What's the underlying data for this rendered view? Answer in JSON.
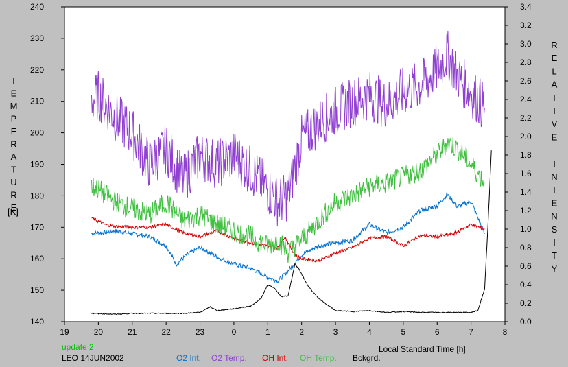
{
  "chart_data": {
    "type": "line",
    "ylabel_left": "TEMPERATURE",
    "ylabel_left_unit": "[K]",
    "ylabel_right": "RELATIVE INTENSITY",
    "xlabel": "Local Standard Time [h]",
    "status": "update 2",
    "site_date": "LEO 14JUN2002",
    "xlim": [
      19,
      8
    ],
    "xticks": [
      19,
      20,
      21,
      22,
      23,
      0,
      1,
      2,
      3,
      4,
      5,
      6,
      7,
      8
    ],
    "ylim_left": [
      140,
      240
    ],
    "yticks_left": [
      140,
      150,
      160,
      170,
      180,
      190,
      200,
      210,
      220,
      230,
      240
    ],
    "ylim_right": [
      0,
      3.4
    ],
    "yticks_right": [
      "0.0",
      "0.2",
      "0.4",
      "0.6",
      "0.8",
      "1.0",
      "1.2",
      "1.4",
      "1.6",
      "1.8",
      "2.0",
      "2.2",
      "2.4",
      "2.6",
      "2.8",
      "3.0",
      "3.2",
      "3.4"
    ],
    "grid": false,
    "legend_position": "bottom",
    "series": [
      {
        "name": "O2 Int.",
        "axis": "right",
        "color": "#0070d0",
        "x": [
          19.8,
          20.5,
          21.0,
          21.5,
          22.0,
          22.3,
          22.6,
          23.0,
          23.5,
          0.0,
          0.5,
          1.0,
          1.3,
          1.6,
          2.0,
          2.5,
          3.0,
          3.5,
          4.0,
          4.5,
          5.0,
          5.5,
          6.0,
          6.3,
          6.6,
          7.0,
          7.4
        ],
        "y": [
          0.95,
          0.98,
          0.95,
          0.92,
          0.82,
          0.62,
          0.72,
          0.8,
          0.7,
          0.62,
          0.58,
          0.48,
          0.44,
          0.55,
          0.72,
          0.82,
          0.85,
          0.88,
          1.05,
          0.96,
          1.02,
          1.2,
          1.25,
          1.38,
          1.24,
          1.3,
          0.95
        ]
      },
      {
        "name": "O2 Temp.",
        "axis": "left",
        "color": "#9040d0",
        "x": [
          19.8,
          20.0,
          20.5,
          21.0,
          21.5,
          22.0,
          22.5,
          23.0,
          23.5,
          0.0,
          0.5,
          1.0,
          1.3,
          1.6,
          2.0,
          2.5,
          3.0,
          3.5,
          4.0,
          4.5,
          5.0,
          5.5,
          6.0,
          6.3,
          6.6,
          7.0,
          7.4
        ],
        "y": [
          210,
          212,
          205,
          200,
          190,
          195,
          185,
          193,
          190,
          193,
          188,
          182,
          178,
          180,
          198,
          203,
          207,
          210,
          212,
          209,
          213,
          215,
          220,
          225,
          218,
          213,
          208
        ]
      },
      {
        "name": "OH Int.",
        "axis": "right",
        "color": "#d00000",
        "x": [
          19.8,
          20.2,
          20.5,
          21.0,
          21.5,
          22.0,
          22.5,
          23.0,
          23.5,
          0.0,
          0.5,
          1.0,
          1.3,
          1.5,
          1.8,
          2.0,
          2.5,
          3.0,
          3.5,
          4.0,
          4.5,
          5.0,
          5.5,
          6.0,
          6.5,
          7.0,
          7.4
        ],
        "y": [
          1.12,
          1.05,
          1.03,
          1.02,
          1.02,
          1.05,
          0.96,
          0.92,
          0.98,
          0.9,
          0.85,
          0.82,
          0.8,
          0.92,
          0.72,
          0.68,
          0.66,
          0.74,
          0.8,
          0.9,
          0.92,
          0.82,
          0.93,
          0.92,
          0.95,
          1.05,
          1.0
        ]
      },
      {
        "name": "OH Temp.",
        "axis": "left",
        "color": "#40c040",
        "x": [
          19.8,
          20.0,
          20.5,
          21.0,
          21.5,
          22.0,
          22.5,
          23.0,
          23.5,
          0.0,
          0.5,
          1.0,
          1.3,
          1.6,
          2.0,
          2.5,
          3.0,
          3.5,
          4.0,
          4.5,
          5.0,
          5.5,
          6.0,
          6.3,
          6.6,
          7.0,
          7.4
        ],
        "y": [
          183,
          182,
          178,
          176,
          174,
          178,
          172,
          174,
          171,
          169,
          167,
          164,
          166,
          162,
          166,
          172,
          178,
          180,
          183,
          184,
          186,
          188,
          193,
          197,
          195,
          190,
          184
        ]
      },
      {
        "name": "Bckgrd.",
        "axis": "right",
        "color": "#000000",
        "x": [
          19.8,
          20.5,
          21.0,
          21.5,
          22.0,
          22.5,
          23.0,
          23.3,
          23.5,
          0.0,
          0.5,
          0.8,
          1.0,
          1.2,
          1.4,
          1.6,
          1.8,
          1.9,
          2.2,
          2.5,
          3.0,
          3.5,
          4.0,
          4.5,
          5.0,
          5.5,
          6.0,
          6.5,
          7.0,
          7.2,
          7.4,
          7.5,
          7.6
        ],
        "y": [
          0.09,
          0.08,
          0.09,
          0.09,
          0.09,
          0.09,
          0.1,
          0.16,
          0.12,
          0.14,
          0.17,
          0.25,
          0.4,
          0.36,
          0.27,
          0.28,
          0.62,
          0.58,
          0.38,
          0.25,
          0.12,
          0.11,
          0.12,
          0.1,
          0.11,
          0.1,
          0.1,
          0.1,
          0.1,
          0.12,
          0.35,
          1.05,
          1.85
        ]
      }
    ]
  }
}
